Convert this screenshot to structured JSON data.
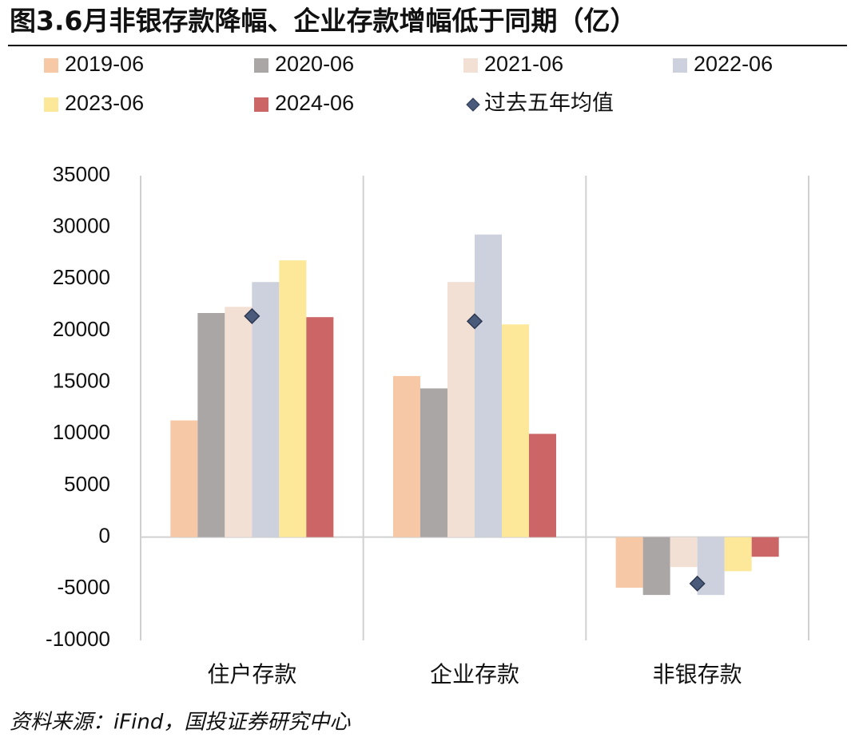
{
  "chart_data": {
    "type": "bar",
    "title": "图3.6月非银存款降幅、企业存款增幅低于同期（亿）",
    "source": "资料来源：iFind，国投证券研究中心",
    "categories": [
      "住户存款",
      "企业存款",
      "非银存款"
    ],
    "series": [
      {
        "name": "2019-06",
        "color": "#f6c8a5",
        "values": [
          11300,
          15600,
          -4900
        ]
      },
      {
        "name": "2020-06",
        "color": "#aaa6a6",
        "values": [
          21700,
          14400,
          -5600
        ]
      },
      {
        "name": "2021-06",
        "color": "#f2e0d4",
        "values": [
          22300,
          24700,
          -2900
        ]
      },
      {
        "name": "2022-06",
        "color": "#cdd0dd",
        "values": [
          24700,
          29300,
          -5600
        ]
      },
      {
        "name": "2023-06",
        "color": "#fde89a",
        "values": [
          26800,
          20600,
          -3300
        ]
      },
      {
        "name": "2024-06",
        "color": "#cc6666",
        "values": [
          21300,
          10000,
          -1900
        ]
      },
      {
        "name": "过去五年均值",
        "color": "#4a5a7a",
        "marker": "diamond",
        "values": [
          21400,
          20900,
          -4500
        ]
      }
    ],
    "ylim": [
      -10000,
      35000
    ],
    "yticks": [
      -10000,
      -5000,
      0,
      5000,
      10000,
      15000,
      20000,
      25000,
      30000,
      35000
    ]
  }
}
